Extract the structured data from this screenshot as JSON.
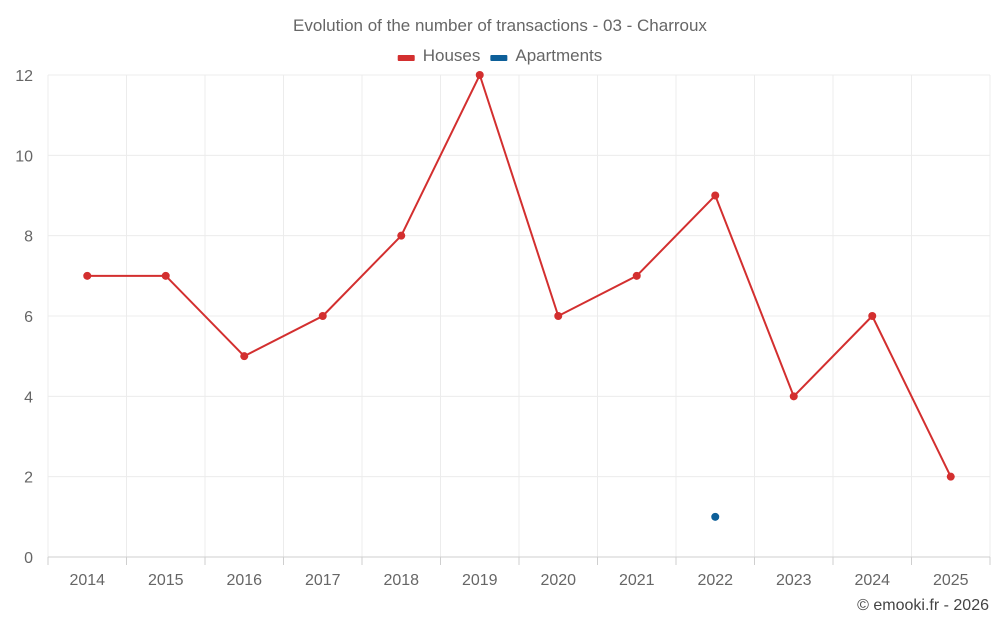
{
  "chart_data": {
    "type": "line",
    "title": "Evolution of the number of transactions - 03 - Charroux",
    "categories": [
      "2014",
      "2015",
      "2016",
      "2017",
      "2018",
      "2019",
      "2020",
      "2021",
      "2022",
      "2023",
      "2024",
      "2025"
    ],
    "series": [
      {
        "name": "Houses",
        "color": "#d32f2f",
        "values": [
          7,
          7,
          5,
          6,
          8,
          12,
          6,
          7,
          9,
          4,
          6,
          2
        ]
      },
      {
        "name": "Apartments",
        "color": "#0d5f99",
        "values": [
          null,
          null,
          null,
          null,
          null,
          null,
          null,
          null,
          1,
          null,
          null,
          null
        ]
      }
    ],
    "ylim": [
      0,
      12
    ],
    "yticks": [
      0,
      2,
      4,
      6,
      8,
      10,
      12
    ],
    "xlabel": "",
    "ylabel": "",
    "grid": true,
    "legend": "top-center"
  },
  "credit": "© emooki.fr - 2026"
}
